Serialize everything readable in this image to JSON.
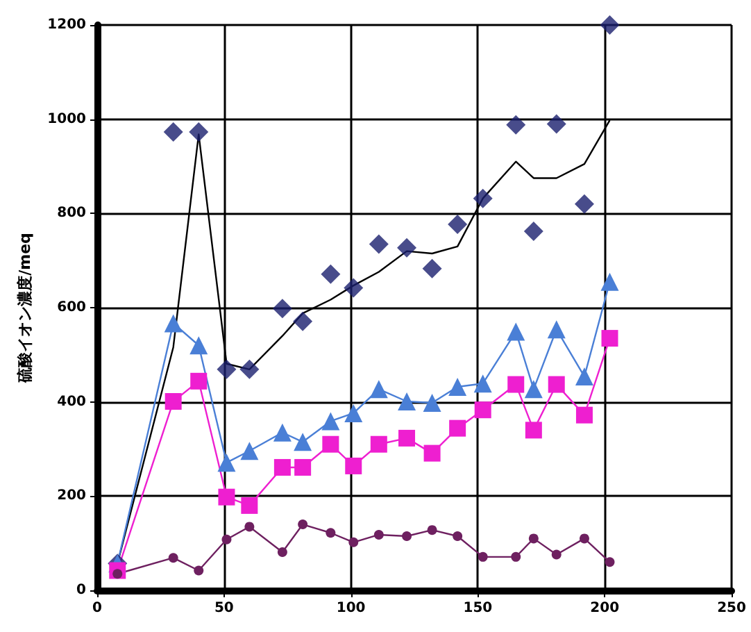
{
  "chart_data": {
    "type": "line",
    "ylabel": "硫酸イオン濃度/meq",
    "x": [
      8,
      30,
      40,
      51,
      60,
      73,
      81,
      92,
      101,
      111,
      122,
      132,
      142,
      152,
      165,
      172,
      181,
      192,
      202
    ],
    "series": [
      {
        "type": "scatter",
        "marker": "diamond",
        "color": "#1a1f6e",
        "values": [
          57,
          973,
          973,
          469,
          469,
          598,
          571,
          671,
          642,
          735,
          727,
          683,
          777,
          832,
          988,
          762,
          990,
          820,
          1200
        ]
      },
      {
        "marker": "none",
        "color": "#000000",
        "values": [
          57,
          516,
          968,
          481,
          469,
          540,
          588,
          617,
          647,
          676,
          720,
          715,
          730,
          832,
          910,
          875,
          875,
          905,
          998
        ]
      },
      {
        "marker": "triangle",
        "color": "#4a7fd6",
        "values": [
          57,
          567,
          520,
          271,
          296,
          335,
          315,
          359,
          376,
          427,
          401,
          398,
          432,
          439,
          549,
          427,
          554,
          454,
          655
        ]
      },
      {
        "marker": "square",
        "color": "#ee1fd0",
        "values": [
          42,
          401,
          444,
          198,
          180,
          261,
          261,
          310,
          264,
          310,
          323,
          291,
          344,
          383,
          437,
          340,
          437,
          372,
          535
        ]
      },
      {
        "marker": "circle",
        "color": "#6e2060",
        "values": [
          35,
          69,
          42,
          108,
          135,
          81,
          140,
          122,
          102,
          118,
          115,
          128,
          115,
          71,
          71,
          110,
          76,
          110,
          60
        ]
      }
    ],
    "xlim": [
      0,
      250
    ],
    "xticks": [
      0,
      50,
      100,
      150,
      200,
      250
    ],
    "ylim": [
      0,
      1200
    ],
    "yticks": [
      0,
      200,
      400,
      600,
      800,
      1000,
      1200
    ],
    "grid": true
  }
}
